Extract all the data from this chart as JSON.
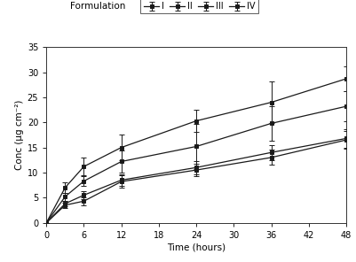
{
  "title_legend": "Formulation",
  "xlabel": "Time (hours)",
  "ylabel": "Conc (μg cm⁻²)",
  "x": [
    0,
    3,
    6,
    12,
    24,
    36,
    48
  ],
  "series": {
    "I": {
      "y": [
        0,
        3.5,
        4.3,
        8.2,
        10.5,
        13.0,
        16.5
      ],
      "yerr": [
        0,
        0.5,
        0.8,
        1.2,
        1.3,
        1.5,
        1.8
      ]
    },
    "II": {
      "y": [
        0,
        3.8,
        5.5,
        8.5,
        11.0,
        14.0,
        16.8
      ],
      "yerr": [
        0,
        0.5,
        0.8,
        1.2,
        1.3,
        1.5,
        1.8
      ]
    },
    "III": {
      "y": [
        0,
        5.2,
        8.3,
        12.2,
        15.2,
        19.8,
        23.2
      ],
      "yerr": [
        0,
        0.8,
        1.0,
        2.2,
        4.5,
        3.5,
        3.0
      ]
    },
    "IV": {
      "y": [
        0,
        7.0,
        11.2,
        15.0,
        20.3,
        24.0,
        28.7
      ],
      "yerr": [
        0,
        1.0,
        1.8,
        2.5,
        2.2,
        4.2,
        2.5
      ]
    }
  },
  "color": "#1a1a1a",
  "marker": "s",
  "ylim": [
    0,
    35
  ],
  "xlim": [
    0,
    48
  ],
  "xticks": [
    0,
    6,
    12,
    18,
    24,
    30,
    36,
    42,
    48
  ],
  "yticks": [
    0,
    5,
    10,
    15,
    20,
    25,
    30,
    35
  ],
  "legend_labels": [
    "I",
    "II",
    "III",
    "IV"
  ],
  "background_color": "#ffffff",
  "figsize": [
    4.02,
    2.96
  ],
  "dpi": 100
}
